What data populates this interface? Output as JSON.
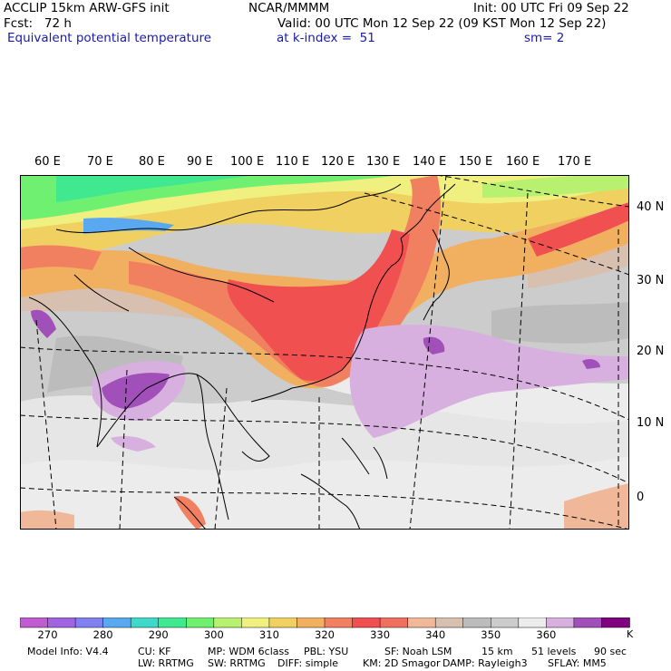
{
  "header": {
    "model": "ACCLIP 15km ARW-GFS init",
    "org": "NCAR/MMMM",
    "init": "Init: 00 UTC Fri 09 Sep 22",
    "fcst": "Fcst:   72 h",
    "valid": "Valid: 00 UTC Mon 12 Sep 22 (09 KST Mon 12 Sep 22)",
    "field": "Equivalent potential temperature",
    "level": "at k-index =  51",
    "smoothing": "sm= 2"
  },
  "map": {
    "lon_labels": [
      "60 E",
      "70 E",
      "80 E",
      "90 E",
      "100 E",
      "110 E",
      "120 E",
      "130 E",
      "140 E",
      "150 E",
      "160 E",
      "170 E"
    ],
    "lat_labels": [
      "40 N",
      "30 N",
      "20 N",
      "10 N",
      "0"
    ]
  },
  "colorbar": {
    "colors": [
      "#c05cd0",
      "#a064e0",
      "#8080f0",
      "#5aa8f0",
      "#40d8c8",
      "#40e890",
      "#70f070",
      "#b8f070",
      "#f0f080",
      "#f0d060",
      "#f0b060",
      "#f08060",
      "#f05050",
      "#f07060",
      "#f0b898",
      "#d8c0b0",
      "#bcbcbc",
      "#cccccc",
      "#ececec",
      "#d8b0e0",
      "#a050b8",
      "#800080"
    ],
    "labels": [
      "270",
      "280",
      "290",
      "300",
      "310",
      "320",
      "330",
      "340",
      "350",
      "360"
    ],
    "unit": "K"
  },
  "footer": {
    "line1": [
      "Model Info: V4.4",
      "CU: KF",
      "MP: WDM 6class",
      "PBL: YSU",
      "SF: Noah LSM",
      "15 km",
      "51 levels",
      "90 sec"
    ],
    "line2": [
      "LW: RRTMG",
      "SW: RRTMG",
      "DIFF: simple",
      "KM: 2D Smagor",
      "DAMP: Rayleigh3",
      "SFLAY: MM5"
    ]
  }
}
